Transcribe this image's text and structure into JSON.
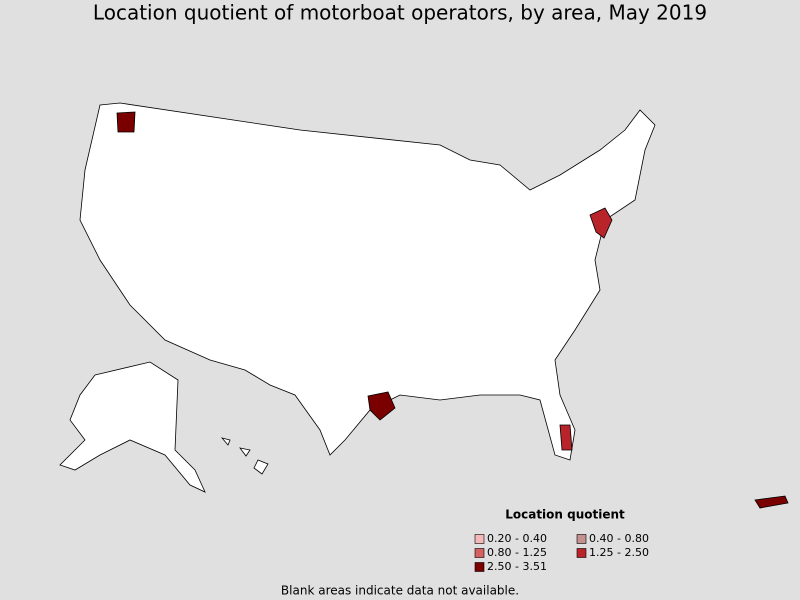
{
  "title": "Location quotient of motorboat operators, by area, May 2019",
  "legend": {
    "title": "Location quotient",
    "items": [
      {
        "label": "0.20 - 0.40",
        "color": "#f4b8b8"
      },
      {
        "label": "0.40 - 0.80",
        "color": "#c49090"
      },
      {
        "label": "0.80 - 1.25",
        "color": "#d46060"
      },
      {
        "label": "1.25 - 2.50",
        "color": "#b8242a"
      },
      {
        "label": "2.50 - 3.51",
        "color": "#7a0000"
      }
    ]
  },
  "footnote": "Blank areas indicate data not available."
}
